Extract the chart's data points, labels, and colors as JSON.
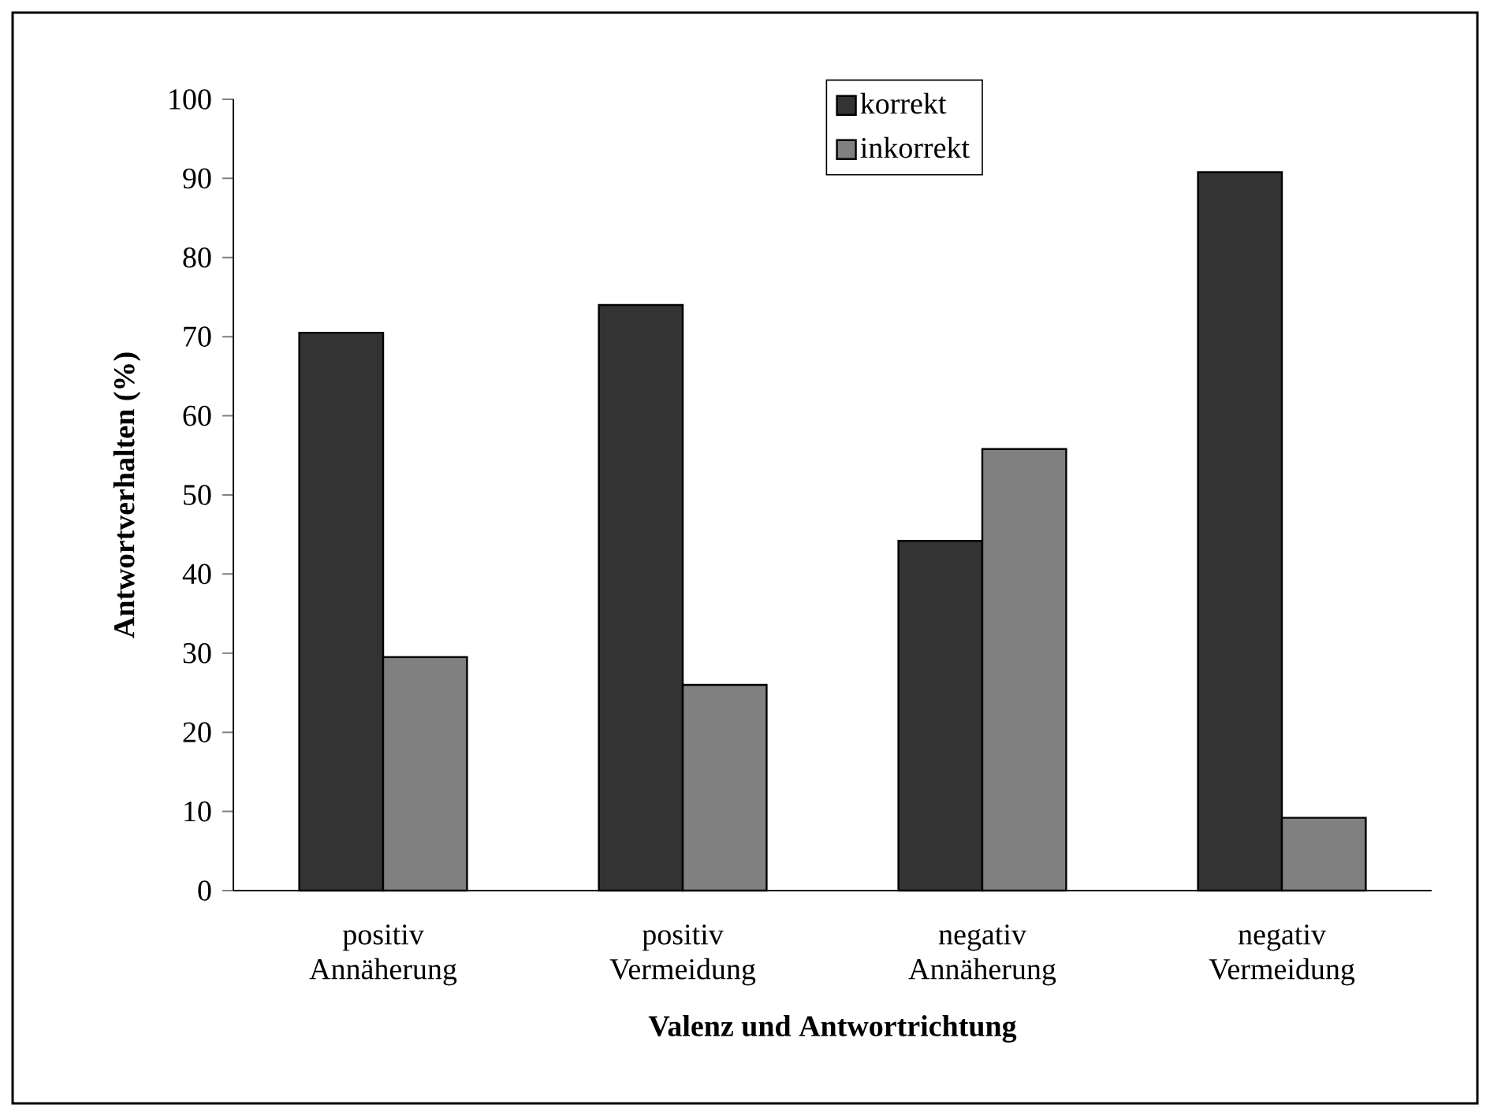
{
  "chart_data": {
    "type": "bar",
    "xlabel": "Valenz und Antwortrichtung",
    "ylabel": "Antwortverhalten (%)",
    "categories": [
      "positiv Annäherung",
      "positiv Vermeidung",
      "negativ Annäherung",
      "negativ Vermeidung"
    ],
    "series": [
      {
        "name": "korrekt",
        "color": "#333333",
        "values": [
          70.5,
          74.0,
          44.2,
          90.8
        ]
      },
      {
        "name": "inkorrekt",
        "color": "#808080",
        "values": [
          29.5,
          26.0,
          55.8,
          9.2
        ]
      }
    ],
    "ylim": [
      0,
      100
    ],
    "yticks": [
      0,
      10,
      20,
      30,
      40,
      50,
      60,
      70,
      80,
      90,
      100
    ],
    "legend": "top"
  }
}
